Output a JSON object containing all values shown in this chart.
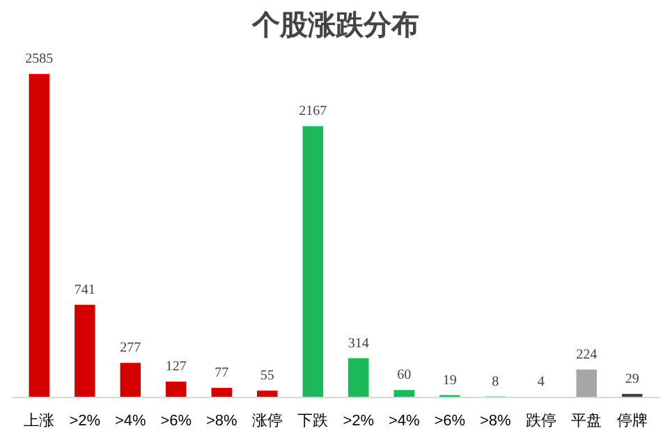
{
  "chart_data": {
    "type": "bar",
    "title": "个股涨跌分布",
    "categories": [
      "上涨",
      ">2%",
      ">4%",
      ">6%",
      ">8%",
      "涨停",
      "下跌",
      ">2%",
      ">4%",
      ">6%",
      ">8%",
      "跌停",
      "平盘",
      "停牌"
    ],
    "values": [
      2585,
      741,
      277,
      127,
      77,
      55,
      2167,
      314,
      60,
      19,
      8,
      4,
      224,
      29
    ],
    "colors": [
      "#d40000",
      "#d40000",
      "#d40000",
      "#d40000",
      "#d40000",
      "#d40000",
      "#1cb85a",
      "#1cb85a",
      "#1cb85a",
      "#1cb85a",
      "#1cb85a",
      "#1cb85a",
      "#a6a6a6",
      "#404040"
    ],
    "data_labels": true,
    "tick_labels": "x",
    "grid": false
  }
}
